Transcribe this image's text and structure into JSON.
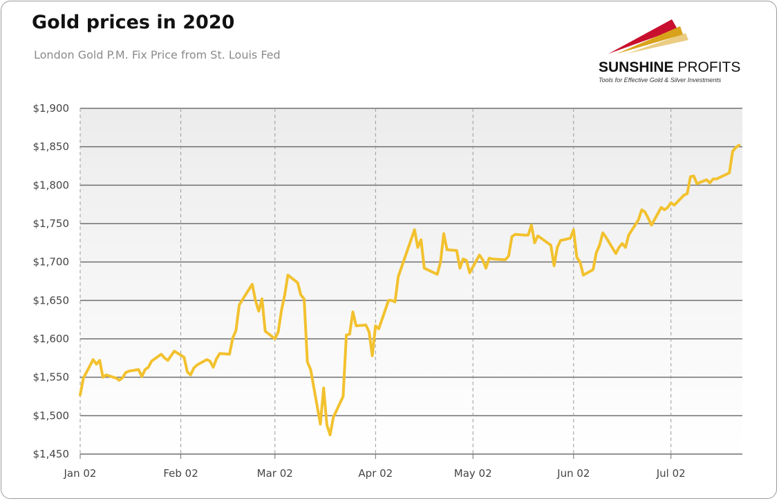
{
  "header": {
    "title": "Gold prices in 2020",
    "subtitle": "London Gold P.M. Fix Price from St. Louis Fed"
  },
  "logo": {
    "name_bold": "SUNSHINE",
    "name_rest": " PROFITS",
    "tagline": "Tools for Effective Gold & Silver Investments"
  },
  "colors": {
    "line": "#f2c12e",
    "plot_bg_top": "#ececec",
    "plot_bg_bottom": "#ffffff",
    "gridline": "#6e6e6e",
    "vgrid": "#9a9a9a",
    "logo_red": "#c8102e",
    "logo_gold": "#d9a21b"
  },
  "chart_data": {
    "type": "line",
    "title": "Gold prices in 2020",
    "subtitle": "London Gold P.M. Fix Price from St. Louis Fed",
    "xlabel": "",
    "ylabel": "",
    "ylim": [
      1450,
      1900
    ],
    "xlim": [
      "2020-01-02",
      "2020-07-24"
    ],
    "y_ticks": [
      1450,
      1500,
      1550,
      1600,
      1650,
      1700,
      1750,
      1800,
      1850,
      1900
    ],
    "y_tick_labels": [
      "$1,450",
      "$1,500",
      "$1,550",
      "$1,600",
      "$1,650",
      "$1,700",
      "$1,750",
      "$1,800",
      "$1,850",
      "$1,900"
    ],
    "x_ticks": [
      "2020-01-02",
      "2020-02-02",
      "2020-03-02",
      "2020-04-02",
      "2020-05-02",
      "2020-06-02",
      "2020-07-02"
    ],
    "x_tick_labels": [
      "Jan 02",
      "Feb 02",
      "Mar 02",
      "Apr 02",
      "May 02",
      "Jun 02",
      "Jul 02"
    ],
    "grid": true,
    "series": [
      {
        "values": [
          [
            "2020-01-02",
            1527
          ],
          [
            "2020-01-03",
            1549
          ],
          [
            "2020-01-06",
            1573
          ],
          [
            "2020-01-07",
            1567
          ],
          [
            "2020-01-08",
            1572
          ],
          [
            "2020-01-09",
            1550
          ],
          [
            "2020-01-10",
            1553
          ],
          [
            "2020-01-13",
            1549
          ],
          [
            "2020-01-14",
            1546
          ],
          [
            "2020-01-15",
            1549
          ],
          [
            "2020-01-16",
            1556
          ],
          [
            "2020-01-17",
            1558
          ],
          [
            "2020-01-20",
            1560
          ],
          [
            "2020-01-21",
            1551
          ],
          [
            "2020-01-22",
            1560
          ],
          [
            "2020-01-23",
            1563
          ],
          [
            "2020-01-24",
            1571
          ],
          [
            "2020-01-27",
            1580
          ],
          [
            "2020-01-28",
            1575
          ],
          [
            "2020-01-29",
            1572
          ],
          [
            "2020-01-30",
            1578
          ],
          [
            "2020-01-31",
            1584
          ],
          [
            "2020-02-03",
            1576
          ],
          [
            "2020-02-04",
            1557
          ],
          [
            "2020-02-05",
            1553
          ],
          [
            "2020-02-06",
            1562
          ],
          [
            "2020-02-07",
            1566
          ],
          [
            "2020-02-10",
            1573
          ],
          [
            "2020-02-11",
            1571
          ],
          [
            "2020-02-12",
            1563
          ],
          [
            "2020-02-13",
            1574
          ],
          [
            "2020-02-14",
            1581
          ],
          [
            "2020-02-17",
            1580
          ],
          [
            "2020-02-18",
            1601
          ],
          [
            "2020-02-19",
            1611
          ],
          [
            "2020-02-20",
            1644
          ],
          [
            "2020-02-21",
            1651
          ],
          [
            "2020-02-24",
            1671
          ],
          [
            "2020-02-25",
            1650
          ],
          [
            "2020-02-26",
            1636
          ],
          [
            "2020-02-27",
            1652
          ],
          [
            "2020-02-28",
            1610
          ],
          [
            "2020-03-02",
            1600
          ],
          [
            "2020-03-03",
            1609
          ],
          [
            "2020-03-04",
            1637
          ],
          [
            "2020-03-05",
            1657
          ],
          [
            "2020-03-06",
            1683
          ],
          [
            "2020-03-09",
            1673
          ],
          [
            "2020-03-10",
            1657
          ],
          [
            "2020-03-11",
            1652
          ],
          [
            "2020-03-12",
            1570
          ],
          [
            "2020-03-13",
            1560
          ],
          [
            "2020-03-16",
            1489
          ],
          [
            "2020-03-17",
            1536
          ],
          [
            "2020-03-18",
            1488
          ],
          [
            "2020-03-19",
            1475
          ],
          [
            "2020-03-20",
            1498
          ],
          [
            "2020-03-23",
            1525
          ],
          [
            "2020-03-24",
            1605
          ],
          [
            "2020-03-25",
            1606
          ],
          [
            "2020-03-26",
            1635
          ],
          [
            "2020-03-27",
            1617
          ],
          [
            "2020-03-30",
            1618
          ],
          [
            "2020-03-31",
            1609
          ],
          [
            "2020-04-01",
            1578
          ],
          [
            "2020-04-02",
            1617
          ],
          [
            "2020-04-03",
            1613
          ],
          [
            "2020-04-06",
            1650
          ],
          [
            "2020-04-07",
            1650
          ],
          [
            "2020-04-08",
            1648
          ],
          [
            "2020-04-09",
            1681
          ],
          [
            "2020-04-14",
            1742
          ],
          [
            "2020-04-15",
            1719
          ],
          [
            "2020-04-16",
            1729
          ],
          [
            "2020-04-17",
            1692
          ],
          [
            "2020-04-20",
            1686
          ],
          [
            "2020-04-21",
            1684
          ],
          [
            "2020-04-22",
            1700
          ],
          [
            "2020-04-23",
            1737
          ],
          [
            "2020-04-24",
            1716
          ],
          [
            "2020-04-27",
            1715
          ],
          [
            "2020-04-28",
            1692
          ],
          [
            "2020-04-29",
            1704
          ],
          [
            "2020-04-30",
            1702
          ],
          [
            "2020-05-01",
            1686
          ],
          [
            "2020-05-04",
            1709
          ],
          [
            "2020-05-05",
            1703
          ],
          [
            "2020-05-06",
            1692
          ],
          [
            "2020-05-07",
            1705
          ],
          [
            "2020-05-08",
            1704
          ],
          [
            "2020-05-11",
            1703
          ],
          [
            "2020-05-12",
            1703
          ],
          [
            "2020-05-13",
            1708
          ],
          [
            "2020-05-14",
            1733
          ],
          [
            "2020-05-15",
            1736
          ],
          [
            "2020-05-18",
            1735
          ],
          [
            "2020-05-19",
            1735
          ],
          [
            "2020-05-20",
            1748
          ],
          [
            "2020-05-21",
            1725
          ],
          [
            "2020-05-22",
            1734
          ],
          [
            "2020-05-26",
            1722
          ],
          [
            "2020-05-27",
            1695
          ],
          [
            "2020-05-28",
            1719
          ],
          [
            "2020-05-29",
            1728
          ],
          [
            "2020-06-01",
            1731
          ],
          [
            "2020-06-02",
            1742
          ],
          [
            "2020-06-03",
            1706
          ],
          [
            "2020-06-04",
            1700
          ],
          [
            "2020-06-05",
            1683
          ],
          [
            "2020-06-08",
            1690
          ],
          [
            "2020-06-09",
            1712
          ],
          [
            "2020-06-10",
            1722
          ],
          [
            "2020-06-11",
            1738
          ],
          [
            "2020-06-12",
            1732
          ],
          [
            "2020-06-15",
            1711
          ],
          [
            "2020-06-16",
            1719
          ],
          [
            "2020-06-17",
            1724
          ],
          [
            "2020-06-18",
            1719
          ],
          [
            "2020-06-19",
            1735
          ],
          [
            "2020-06-22",
            1755
          ],
          [
            "2020-06-23",
            1768
          ],
          [
            "2020-06-24",
            1765
          ],
          [
            "2020-06-25",
            1757
          ],
          [
            "2020-06-26",
            1748
          ],
          [
            "2020-06-29",
            1771
          ],
          [
            "2020-06-30",
            1768
          ],
          [
            "2020-07-01",
            1771
          ],
          [
            "2020-07-02",
            1777
          ],
          [
            "2020-07-03",
            1774
          ],
          [
            "2020-07-06",
            1787
          ],
          [
            "2020-07-07",
            1789
          ],
          [
            "2020-07-08",
            1811
          ],
          [
            "2020-07-09",
            1812
          ],
          [
            "2020-07-10",
            1802
          ],
          [
            "2020-07-13",
            1807
          ],
          [
            "2020-07-14",
            1803
          ],
          [
            "2020-07-15",
            1808
          ],
          [
            "2020-07-16",
            1808
          ],
          [
            "2020-07-17",
            1810
          ],
          [
            "2020-07-20",
            1816
          ],
          [
            "2020-07-21",
            1844
          ],
          [
            "2020-07-22",
            1849
          ],
          [
            "2020-07-23",
            1852
          ]
        ]
      }
    ]
  }
}
